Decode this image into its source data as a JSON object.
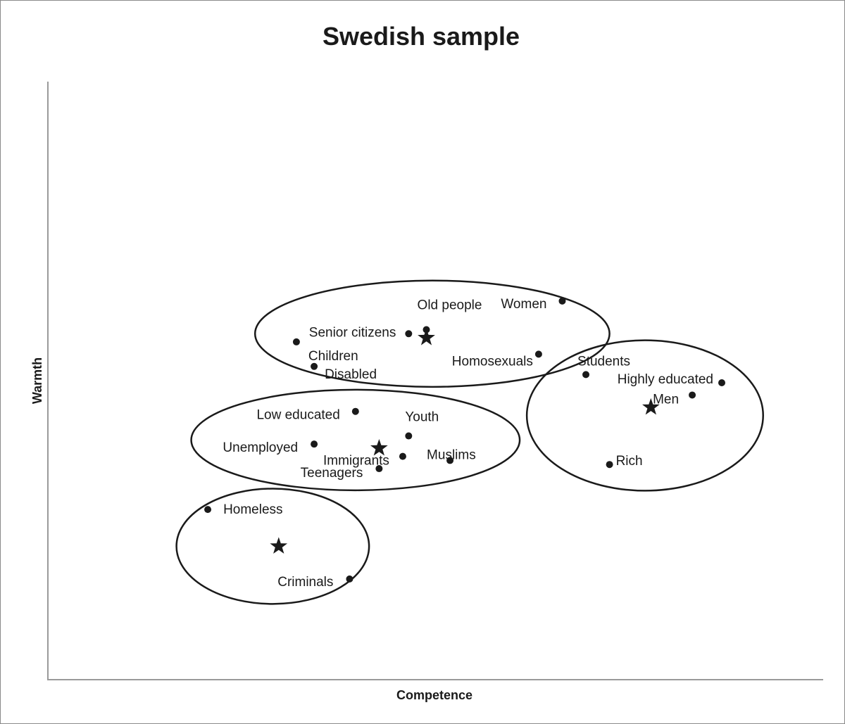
{
  "chart_data": {
    "type": "scatter",
    "title": "Swedish sample",
    "xlabel": "Competence",
    "ylabel": "Warmth",
    "grid": false,
    "legend": "none",
    "colors": {
      "ink": "#1a1a1a",
      "axis": "#9a9a9a"
    },
    "points": [
      {
        "label": "Women",
        "x": 0.73,
        "y": 0.78
      },
      {
        "label": "Old people",
        "x": 0.5,
        "y": 0.71
      },
      {
        "label": "Senior citizens",
        "x": 0.47,
        "y": 0.7
      },
      {
        "label": "Children",
        "x": 0.28,
        "y": 0.68
      },
      {
        "label": "Homosexuals",
        "x": 0.69,
        "y": 0.65
      },
      {
        "label": "Disabled",
        "x": 0.31,
        "y": 0.62
      },
      {
        "label": "Students",
        "x": 0.77,
        "y": 0.6
      },
      {
        "label": "Highly educated",
        "x": 1.0,
        "y": 0.58
      },
      {
        "label": "Men",
        "x": 0.95,
        "y": 0.55
      },
      {
        "label": "Low educated",
        "x": 0.38,
        "y": 0.51
      },
      {
        "label": "Youth",
        "x": 0.47,
        "y": 0.45
      },
      {
        "label": "Unemployed",
        "x": 0.31,
        "y": 0.43
      },
      {
        "label": "Immigrants",
        "x": 0.46,
        "y": 0.4
      },
      {
        "label": "Muslims",
        "x": 0.54,
        "y": 0.39
      },
      {
        "label": "Teenagers",
        "x": 0.42,
        "y": 0.37
      },
      {
        "label": "Rich",
        "x": 0.81,
        "y": 0.38
      },
      {
        "label": "Homeless",
        "x": 0.13,
        "y": 0.27
      },
      {
        "label": "Criminals",
        "x": 0.37,
        "y": 0.1
      }
    ],
    "centroids": [
      {
        "x": 0.5,
        "y": 0.69
      },
      {
        "x": 0.88,
        "y": 0.52
      },
      {
        "x": 0.42,
        "y": 0.42
      },
      {
        "x": 0.25,
        "y": 0.18
      }
    ],
    "clusters": [
      {
        "cx": 0.51,
        "cy": 0.7,
        "rx": 0.3,
        "ry": 0.13
      },
      {
        "cx": 0.87,
        "cy": 0.5,
        "rx": 0.2,
        "ry": 0.184
      },
      {
        "cx": 0.38,
        "cy": 0.44,
        "rx": 0.278,
        "ry": 0.123
      },
      {
        "cx": 0.24,
        "cy": 0.18,
        "rx": 0.163,
        "ry": 0.141
      }
    ]
  }
}
